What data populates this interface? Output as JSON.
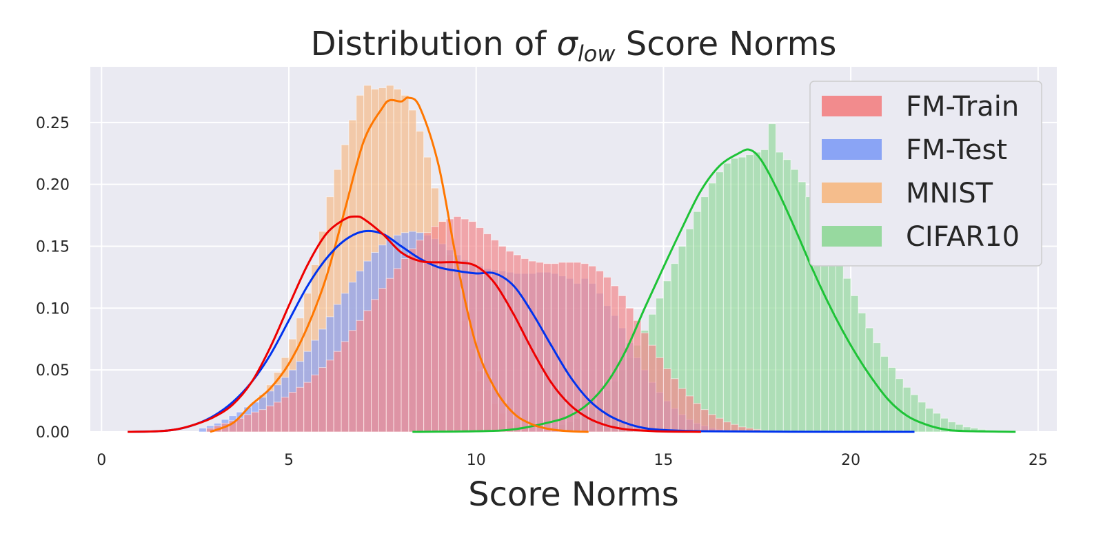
{
  "chart_data": {
    "type": "histogram",
    "title_prefix": "Distribution of ",
    "title_symbol": "σ",
    "title_subscript": "low",
    "title_suffix": " Score Norms",
    "xlabel": "Score Norms",
    "ylabel": "",
    "xlim": [
      -0.3,
      25.5
    ],
    "ylim": [
      0,
      0.295
    ],
    "xticks": [
      0,
      5,
      10,
      15,
      20,
      25
    ],
    "yticks": [
      0.0,
      0.05,
      0.1,
      0.15,
      0.2,
      0.25
    ],
    "xtick_labels": [
      "0",
      "5",
      "10",
      "15",
      "20",
      "25"
    ],
    "ytick_labels": [
      "0.00",
      "0.05",
      "0.10",
      "0.15",
      "0.20",
      "0.25"
    ],
    "grid": true,
    "legend_position": "top-right",
    "colors": {
      "background": "#eaeaf2",
      "grid": "#ffffff",
      "fm_train_bar": "#f28b8d",
      "fm_train_line": "#ee0000",
      "fm_test_bar": "#8aa4f5",
      "fm_test_line": "#0033ee",
      "mnist_bar": "#f5bd8c",
      "mnist_line": "#ff7700",
      "cifar_bar": "#97d99f",
      "cifar_line": "#1ec337"
    },
    "series": [
      {
        "name": "FM-Train",
        "bar_color": "#f28b8d",
        "line_color": "#ee0000",
        "bin_start": 2.8,
        "bin_width": 0.2,
        "values": [
          0.003,
          0.005,
          0.007,
          0.009,
          0.011,
          0.014,
          0.016,
          0.018,
          0.021,
          0.024,
          0.028,
          0.032,
          0.036,
          0.04,
          0.046,
          0.052,
          0.058,
          0.065,
          0.073,
          0.082,
          0.09,
          0.098,
          0.107,
          0.116,
          0.124,
          0.132,
          0.14,
          0.148,
          0.155,
          0.161,
          0.166,
          0.17,
          0.172,
          0.174,
          0.172,
          0.17,
          0.165,
          0.16,
          0.155,
          0.15,
          0.146,
          0.143,
          0.14,
          0.138,
          0.137,
          0.136,
          0.136,
          0.137,
          0.137,
          0.137,
          0.136,
          0.134,
          0.13,
          0.125,
          0.118,
          0.11,
          0.1,
          0.09,
          0.08,
          0.07,
          0.06,
          0.051,
          0.043,
          0.035,
          0.029,
          0.023,
          0.018,
          0.014,
          0.011,
          0.008,
          0.006,
          0.004,
          0.003,
          0.002,
          0.001
        ],
        "kde_x": [
          0.7,
          1.5,
          2.0,
          2.5,
          3.0,
          3.5,
          4.0,
          4.5,
          5.0,
          5.5,
          6.0,
          6.5,
          6.8,
          7.0,
          7.5,
          8.0,
          8.5,
          9.0,
          9.5,
          10.0,
          10.5,
          11.0,
          11.5,
          12.0,
          12.5,
          13.0,
          13.5,
          14.0,
          14.5,
          15.0,
          16.0
        ],
        "kde_y": [
          0.0,
          0.0005,
          0.002,
          0.006,
          0.012,
          0.022,
          0.04,
          0.068,
          0.102,
          0.135,
          0.16,
          0.172,
          0.174,
          0.172,
          0.16,
          0.145,
          0.138,
          0.137,
          0.137,
          0.134,
          0.12,
          0.095,
          0.066,
          0.04,
          0.022,
          0.011,
          0.005,
          0.002,
          0.001,
          0.0003,
          0.0
        ]
      },
      {
        "name": "FM-Test",
        "bar_color": "#8aa4f5",
        "line_color": "#0033ee",
        "bin_start": 2.6,
        "bin_width": 0.2,
        "values": [
          0.003,
          0.005,
          0.007,
          0.01,
          0.013,
          0.016,
          0.02,
          0.024,
          0.028,
          0.033,
          0.038,
          0.044,
          0.05,
          0.057,
          0.065,
          0.074,
          0.083,
          0.093,
          0.103,
          0.112,
          0.121,
          0.13,
          0.138,
          0.145,
          0.151,
          0.156,
          0.159,
          0.161,
          0.162,
          0.161,
          0.159,
          0.156,
          0.152,
          0.147,
          0.143,
          0.139,
          0.136,
          0.134,
          0.132,
          0.131,
          0.13,
          0.129,
          0.128,
          0.128,
          0.128,
          0.129,
          0.129,
          0.128,
          0.126,
          0.124,
          0.12,
          0.124,
          0.12,
          0.112,
          0.102,
          0.094,
          0.084,
          0.072,
          0.06,
          0.05,
          0.04,
          0.032,
          0.025,
          0.019,
          0.014,
          0.01,
          0.007,
          0.005,
          0.003,
          0.002,
          0.001
        ],
        "kde_x": [
          0.7,
          1.5,
          2.0,
          2.5,
          3.0,
          3.5,
          4.0,
          4.5,
          5.0,
          5.5,
          6.0,
          6.5,
          7.0,
          7.5,
          8.0,
          8.5,
          9.0,
          9.5,
          10.0,
          10.5,
          11.0,
          11.5,
          12.0,
          12.5,
          13.0,
          13.5,
          14.0,
          14.5,
          15.0,
          16.0,
          18.0,
          21.7
        ],
        "kde_y": [
          0.0,
          0.0005,
          0.002,
          0.006,
          0.013,
          0.024,
          0.04,
          0.062,
          0.09,
          0.118,
          0.14,
          0.155,
          0.162,
          0.16,
          0.15,
          0.14,
          0.133,
          0.13,
          0.128,
          0.128,
          0.118,
          0.096,
          0.07,
          0.045,
          0.026,
          0.014,
          0.007,
          0.003,
          0.0015,
          0.0005,
          0.0001,
          0.0
        ]
      },
      {
        "name": "MNIST",
        "bar_color": "#f5bd8c",
        "line_color": "#ff7700",
        "bin_start": 4.2,
        "bin_width": 0.2,
        "values": [
          0.03,
          0.038,
          0.048,
          0.06,
          0.075,
          0.092,
          0.112,
          0.135,
          0.162,
          0.19,
          0.212,
          0.232,
          0.252,
          0.272,
          0.28,
          0.277,
          0.278,
          0.28,
          0.277,
          0.272,
          0.26,
          0.243,
          0.222,
          0.197,
          0.17,
          0.143,
          0.115,
          0.09,
          0.067,
          0.049,
          0.034,
          0.023,
          0.015,
          0.009,
          0.006,
          0.004
        ],
        "kde_x": [
          2.9,
          3.5,
          4.0,
          4.5,
          5.0,
          5.5,
          6.0,
          6.5,
          7.0,
          7.5,
          7.7,
          8.0,
          8.2,
          8.5,
          9.0,
          9.5,
          10.0,
          10.5,
          11.0,
          11.5,
          12.0,
          12.5,
          13.0
        ],
        "kde_y": [
          0.0,
          0.007,
          0.022,
          0.035,
          0.055,
          0.085,
          0.125,
          0.18,
          0.235,
          0.262,
          0.268,
          0.267,
          0.27,
          0.262,
          0.215,
          0.135,
          0.07,
          0.035,
          0.015,
          0.006,
          0.002,
          0.0005,
          0.0
        ]
      },
      {
        "name": "CIFAR10",
        "bar_color": "#97d99f",
        "line_color": "#1ec337",
        "bin_start": 12.0,
        "bin_width": 0.2,
        "values": [
          0.004,
          0.006,
          0.008,
          0.011,
          0.015,
          0.02,
          0.026,
          0.033,
          0.041,
          0.05,
          0.06,
          0.07,
          0.082,
          0.095,
          0.108,
          0.122,
          0.136,
          0.15,
          0.164,
          0.178,
          0.19,
          0.201,
          0.21,
          0.217,
          0.221,
          0.222,
          0.224,
          0.226,
          0.228,
          0.249,
          0.226,
          0.22,
          0.212,
          0.202,
          0.19,
          0.178,
          0.165,
          0.152,
          0.138,
          0.124,
          0.11,
          0.096,
          0.084,
          0.072,
          0.061,
          0.052,
          0.043,
          0.036,
          0.03,
          0.024,
          0.019,
          0.015,
          0.011,
          0.008,
          0.006,
          0.004,
          0.003,
          0.002
        ],
        "kde_x": [
          8.3,
          10.0,
          11.0,
          12.0,
          12.5,
          13.0,
          13.5,
          14.0,
          14.5,
          15.0,
          15.5,
          16.0,
          16.5,
          17.0,
          17.3,
          17.6,
          18.0,
          18.5,
          19.0,
          19.5,
          20.0,
          20.5,
          21.0,
          21.5,
          22.0,
          22.5,
          23.0,
          24.4
        ],
        "kde_y": [
          0.0,
          0.0005,
          0.002,
          0.008,
          0.013,
          0.023,
          0.04,
          0.066,
          0.1,
          0.133,
          0.165,
          0.195,
          0.215,
          0.225,
          0.228,
          0.22,
          0.198,
          0.165,
          0.13,
          0.098,
          0.07,
          0.046,
          0.026,
          0.013,
          0.006,
          0.002,
          0.0007,
          0.0
        ]
      }
    ],
    "legend": [
      {
        "label": "FM-Train",
        "color": "#f28b8d"
      },
      {
        "label": "FM-Test",
        "color": "#8aa4f5"
      },
      {
        "label": "MNIST",
        "color": "#f5bd8c"
      },
      {
        "label": "CIFAR10",
        "color": "#97d99f"
      }
    ]
  }
}
